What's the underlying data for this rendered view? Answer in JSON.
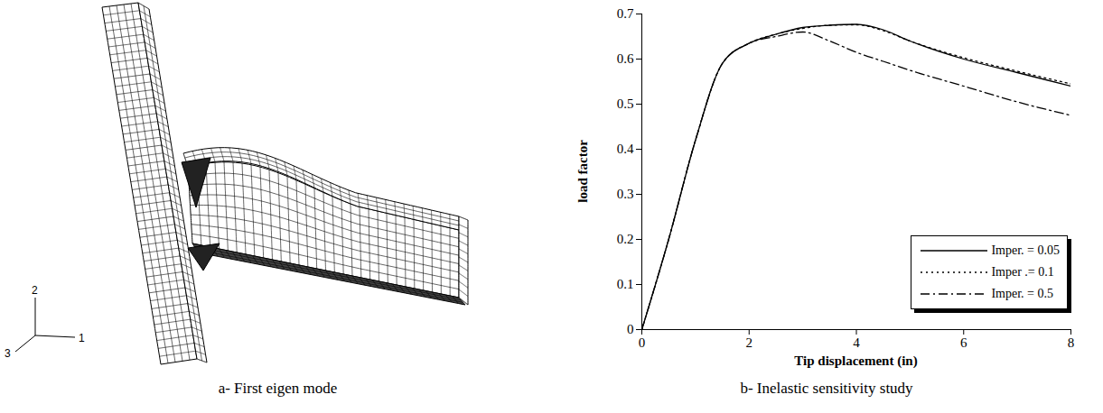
{
  "chart_data": {
    "type": "line",
    "caption": "b- Inelastic sensitivity study",
    "x_label": "Tip displacement (in)",
    "y_label": "load factor",
    "x": [
      0,
      0.5,
      1,
      1.5,
      2,
      2.5,
      3,
      3.5,
      4,
      4.5,
      5,
      6,
      7,
      8
    ],
    "xlim": [
      0,
      8
    ],
    "xticks": [
      0,
      2,
      4,
      6,
      8
    ],
    "ylim": [
      0,
      0.7
    ],
    "yticks": [
      0,
      0.1,
      0.2,
      0.3,
      0.4,
      0.5,
      0.6,
      0.7
    ],
    "grid": false,
    "legend": "lower right",
    "series": [
      {
        "name": "Imper. = 0.05",
        "color": "#000000",
        "line_style": "solid",
        "values": [
          0,
          0.2,
          0.42,
          0.59,
          0.635,
          0.655,
          0.67,
          0.675,
          0.677,
          0.665,
          0.64,
          0.6,
          0.57,
          0.54
        ]
      },
      {
        "name": "Imper .= 0.1",
        "color": "#000000",
        "line_style": "dotted",
        "values": [
          0,
          0.2,
          0.42,
          0.59,
          0.635,
          0.655,
          0.668,
          0.675,
          0.676,
          0.663,
          0.64,
          0.603,
          0.573,
          0.545
        ]
      },
      {
        "name": "Imper. = 0.5",
        "color": "#000000",
        "line_style": "dashdot",
        "values": [
          0,
          0.2,
          0.42,
          0.59,
          0.635,
          0.65,
          0.66,
          0.64,
          0.615,
          0.595,
          0.575,
          0.54,
          0.505,
          0.475
        ]
      }
    ]
  },
  "figure_a": {
    "caption": "a- First eigen mode",
    "axes": [
      "1",
      "2",
      "3"
    ]
  }
}
